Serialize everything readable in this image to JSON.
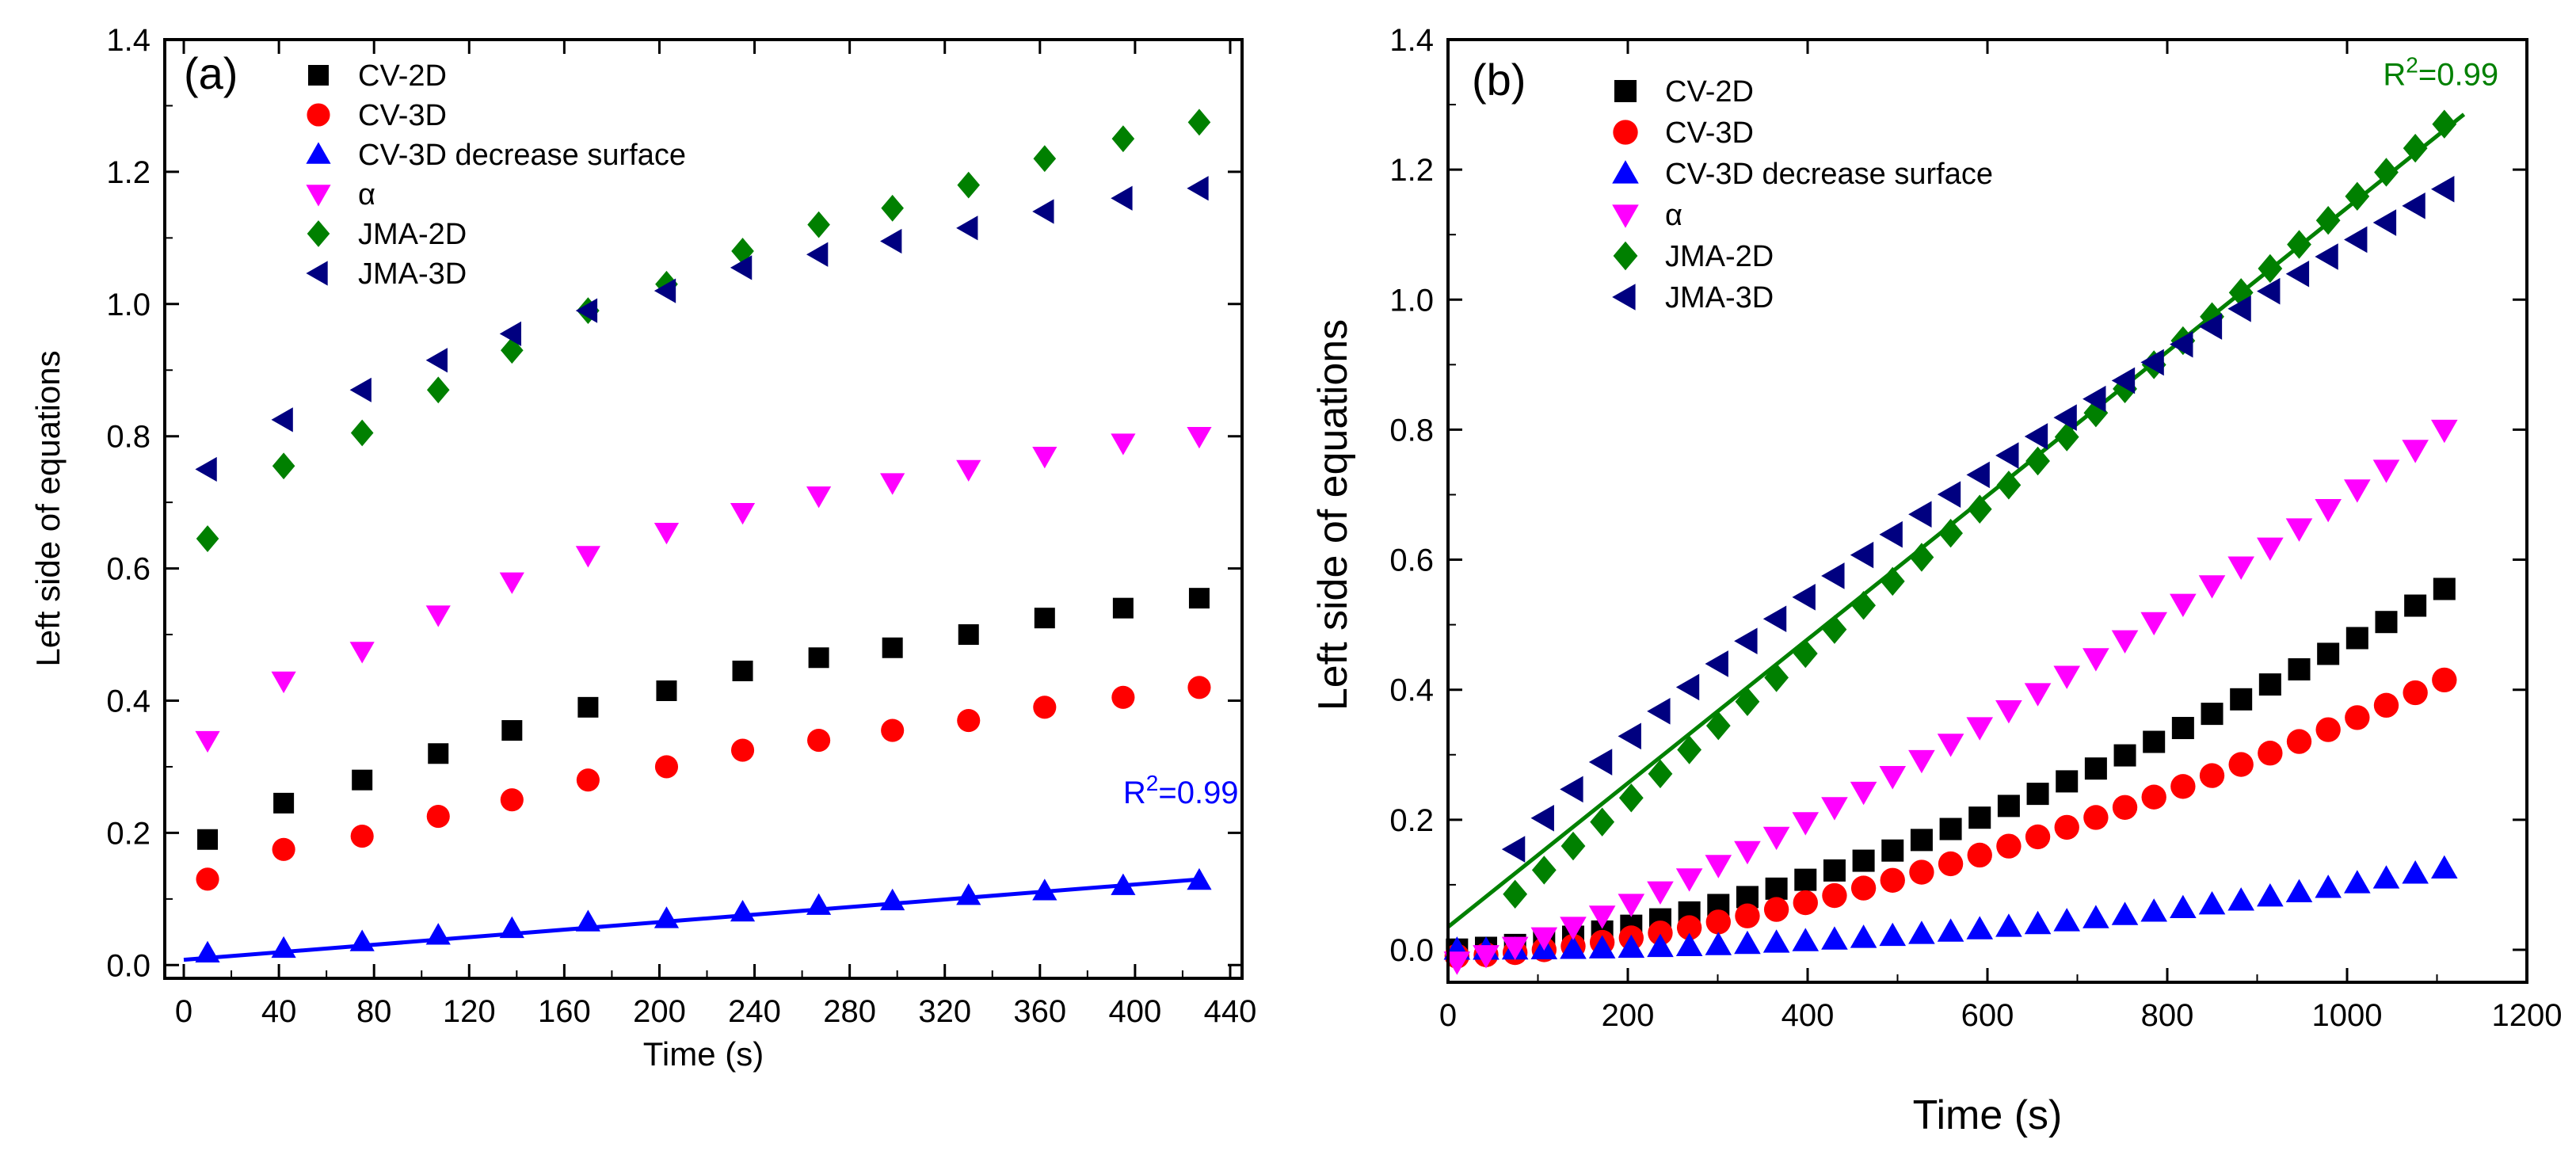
{
  "chart_data": [
    {
      "type": "scatter",
      "panel_label": "(a)",
      "xlabel": "Time (s)",
      "ylabel": "Left side of equations",
      "xlim": [
        -8,
        445
      ],
      "ylim": [
        -0.02,
        1.4
      ],
      "xticks": [
        0,
        40,
        80,
        120,
        160,
        200,
        240,
        280,
        320,
        360,
        400,
        440
      ],
      "yticks": [
        0.0,
        0.2,
        0.4,
        0.6,
        0.8,
        1.0,
        1.2,
        1.4
      ],
      "legend_position": "top-left",
      "x": [
        10,
        42,
        75,
        107,
        138,
        170,
        203,
        235,
        267,
        298,
        330,
        362,
        395,
        427
      ],
      "series": [
        {
          "name": "CV-2D",
          "marker": "square",
          "color": "#000000",
          "values": [
            0.19,
            0.245,
            0.28,
            0.32,
            0.355,
            0.39,
            0.415,
            0.445,
            0.465,
            0.48,
            0.5,
            0.525,
            0.54,
            0.555
          ]
        },
        {
          "name": "CV-3D",
          "marker": "circle",
          "color": "#ff0000",
          "values": [
            0.13,
            0.175,
            0.195,
            0.225,
            0.25,
            0.28,
            0.3,
            0.325,
            0.34,
            0.355,
            0.37,
            0.39,
            0.405,
            0.42
          ]
        },
        {
          "name": "CV-3D decrease surface",
          "marker": "triangle-up",
          "color": "#0000ff",
          "values": [
            0.018,
            0.025,
            0.035,
            0.045,
            0.055,
            0.065,
            0.07,
            0.08,
            0.09,
            0.097,
            0.105,
            0.112,
            0.12,
            0.128
          ]
        },
        {
          "name": "α",
          "marker": "triangle-down",
          "color": "#ff00ff",
          "values": [
            0.34,
            0.43,
            0.475,
            0.53,
            0.58,
            0.62,
            0.655,
            0.685,
            0.71,
            0.73,
            0.75,
            0.77,
            0.79,
            0.8
          ]
        },
        {
          "name": "JMA-2D",
          "marker": "diamond",
          "color": "#008000",
          "values": [
            0.645,
            0.755,
            0.805,
            0.87,
            0.93,
            0.99,
            1.03,
            1.08,
            1.12,
            1.145,
            1.18,
            1.22,
            1.25,
            1.275
          ]
        },
        {
          "name": "JMA-3D",
          "marker": "triangle-left",
          "color": "#000080",
          "values": [
            0.75,
            0.825,
            0.87,
            0.915,
            0.955,
            0.99,
            1.02,
            1.055,
            1.075,
            1.095,
            1.115,
            1.14,
            1.16,
            1.175
          ]
        }
      ],
      "fit_line": {
        "color": "#0000ff",
        "x": [
          0,
          428
        ],
        "y": [
          0.008,
          0.13
        ]
      },
      "annotation": {
        "text_base": "R",
        "superscript": "2",
        "text_rest": "=0.99",
        "color": "#0000ff",
        "x": 395,
        "y": 0.245
      }
    },
    {
      "type": "scatter",
      "panel_label": "(b)",
      "xlabel": "Time (s)",
      "ylabel": "Left side of equations",
      "xlim": [
        0,
        1200
      ],
      "ylim": [
        -0.05,
        1.4
      ],
      "xticks": [
        0,
        200,
        400,
        600,
        800,
        1000,
        1200
      ],
      "yticks": [
        0.0,
        0.2,
        0.4,
        0.6,
        0.8,
        1.0,
        1.2,
        1.4
      ],
      "legend_position": "top-left",
      "t_start": 10,
      "t_step": 32.3,
      "n_points": 35,
      "series": [
        {
          "name": "CV-2D",
          "marker": "square",
          "color": "#000000",
          "curve": {
            "a": 0.0,
            "b": 0.555,
            "p": 1.6
          }
        },
        {
          "name": "CV-3D",
          "marker": "circle",
          "color": "#ff0000",
          "curve": {
            "a": -0.01,
            "b": 0.425,
            "p": 1.6
          }
        },
        {
          "name": "CV-3D decrease surface",
          "marker": "triangle-up",
          "color": "#0000ff",
          "curve": {
            "a": 0.0,
            "b": 0.125,
            "p": 2.2
          }
        },
        {
          "name": "α",
          "marker": "triangle-down",
          "color": "#ff00ff",
          "curve": {
            "a": -0.02,
            "b": 0.82,
            "p": 1.3
          }
        },
        {
          "name": "JMA-2D",
          "marker": "diamond",
          "color": "#008000",
          "curve": {
            "a": 0.0,
            "b": 1.27,
            "p": 1.0
          },
          "start_index": 2
        },
        {
          "name": "JMA-3D",
          "marker": "triangle-left",
          "color": "#000080",
          "curve": {
            "a": 0.0,
            "b": 1.17,
            "p": 0.75
          },
          "start_index": 2
        }
      ],
      "fit_line": {
        "color": "#008000",
        "x": [
          0,
          1130
        ],
        "y": [
          0.035,
          1.285
        ]
      },
      "annotation": {
        "text_base": "R",
        "superscript": "2",
        "text_rest": "=0.99",
        "color": "#008000",
        "x": 1040,
        "y": 1.33
      }
    }
  ]
}
